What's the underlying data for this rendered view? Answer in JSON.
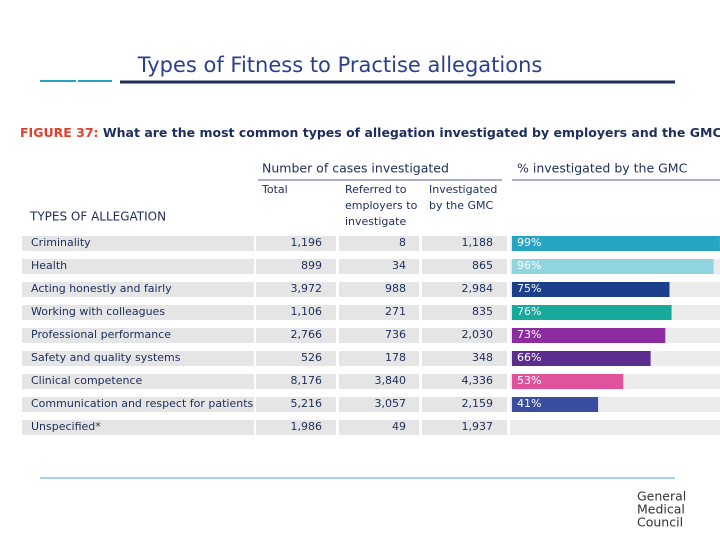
{
  "slide_title": "Types of Fitness to Practise allegations",
  "figure": {
    "label": "FIGURE 37:",
    "title": "What are the most common types of allegation investigated by employers and the GMC?"
  },
  "table": {
    "group_header": "Number of cases investigated",
    "pct_header": "% investigated by the GMC",
    "row_header": "TYPES OF ALLEGATION",
    "columns": [
      [
        "Total"
      ],
      [
        "Referred to",
        "employers to",
        "investigate"
      ],
      [
        "Investigated",
        "by the GMC"
      ]
    ],
    "rows": [
      [
        "Criminality",
        "1,196",
        "8",
        "1,188"
      ],
      [
        "Health",
        "899",
        "34",
        "865"
      ],
      [
        "Acting honestly and fairly",
        "3,972",
        "988",
        "2,984"
      ],
      [
        "Working with colleagues",
        "1,106",
        "271",
        "835"
      ],
      [
        "Professional performance",
        "2,766",
        "736",
        "2,030"
      ],
      [
        "Safety and quality systems",
        "526",
        "178",
        "348"
      ],
      [
        "Clinical competence",
        "8,176",
        "3,840",
        "4,336"
      ],
      [
        "Communication and respect for patients",
        "5,216",
        "3,057",
        "2,159"
      ],
      [
        "Unspecified*",
        "1,986",
        "49",
        "1,937"
      ]
    ]
  },
  "gmc_percent": {
    "values": [
      99,
      96,
      75,
      76,
      73,
      66,
      53,
      41
    ],
    "value_labels": [
      "99%",
      "96%",
      "75%",
      "76%",
      "73%",
      "66%",
      "53%",
      "41%"
    ],
    "colors": [
      "#27a3c4",
      "#8fd4de",
      "#1b3f8b",
      "#17a99b",
      "#8e2ba0",
      "#5b2d8e",
      "#e0529b",
      "#3b4da0"
    ]
  },
  "logo": [
    "General",
    "Medical",
    "Council"
  ]
}
